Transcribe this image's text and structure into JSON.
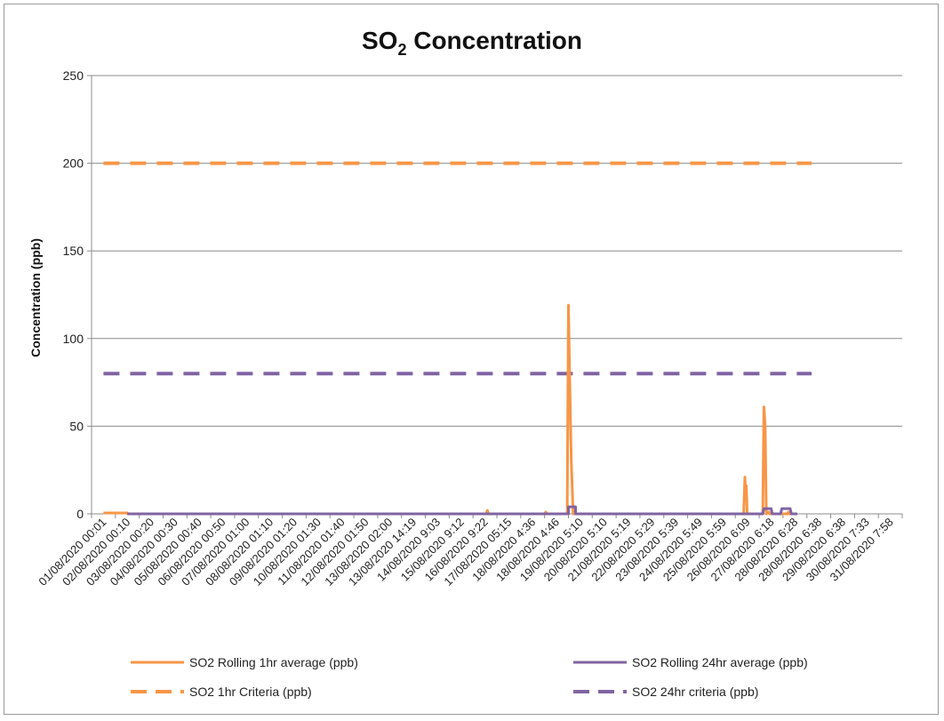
{
  "chart_data": {
    "type": "line",
    "title_main": "SO",
    "title_sub": "2",
    "title_rest": " Concentration",
    "ylabel": "Concentration (ppb)",
    "xlabel": "",
    "ylim": [
      0,
      250
    ],
    "yticks": [
      0,
      50,
      100,
      150,
      200,
      250
    ],
    "grid": true,
    "legend_position": "bottom",
    "x_categories": [
      "01/08/2020 00:01",
      "02/08/2020 00:10",
      "03/08/2020 00:20",
      "04/08/2020 00:30",
      "05/08/2020 00:40",
      "06/08/2020 00:50",
      "07/08/2020 01:00",
      "08/08/2020 01:10",
      "09/08/2020 01:20",
      "10/08/2020 01:30",
      "11/08/2020 01:40",
      "12/08/2020 01:50",
      "13/08/2020 02:00",
      "13/08/2020 14:19",
      "14/08/2020 9:03",
      "15/08/2020 9:12",
      "16/08/2020 9:22",
      "17/08/2020 05:15",
      "18/08/2020 4:36",
      "18/08/2020 4:46",
      "19/08/2020 5:10",
      "20/08/2020 5:10",
      "21/08/2020 5:19",
      "22/08/2020 5:29",
      "23/08/2020 5:39",
      "24/08/2020 5:49",
      "25/08/2020 5:59",
      "26/08/2020 6:09",
      "27/08/2020 6:18",
      "28/08/2020 6:28",
      "28/08/2020 6:38",
      "29/08/2020 6:38",
      "30/08/2020 7:33",
      "31/08/2020 7:58"
    ],
    "series": [
      {
        "name": "SO2 Rolling 1hr average (ppb)",
        "color": "#f79646",
        "style": "solid",
        "points": [
          [
            0,
            0.5
          ],
          [
            1,
            0.5
          ],
          [
            1.01,
            0
          ],
          [
            16.05,
            0
          ],
          [
            16.1,
            2
          ],
          [
            16.15,
            0
          ],
          [
            18.5,
            0
          ],
          [
            18.55,
            1
          ],
          [
            18.6,
            0
          ],
          [
            19.45,
            0
          ],
          [
            19.5,
            119
          ],
          [
            19.55,
            80
          ],
          [
            19.62,
            30
          ],
          [
            19.7,
            0
          ],
          [
            26.85,
            0
          ],
          [
            26.9,
            21
          ],
          [
            26.93,
            12
          ],
          [
            26.96,
            16
          ],
          [
            27.0,
            0
          ],
          [
            27.65,
            0
          ],
          [
            27.7,
            61
          ],
          [
            27.75,
            50
          ],
          [
            27.8,
            0
          ],
          [
            27.9,
            1
          ],
          [
            27.95,
            0
          ],
          [
            28.7,
            0
          ],
          [
            28.72,
            1
          ],
          [
            28.75,
            0
          ],
          [
            29.1,
            0
          ]
        ]
      },
      {
        "name": "SO2 Rolling 24hr average (ppb)",
        "color": "#8064a2",
        "style": "solid",
        "points": [
          [
            1,
            0
          ],
          [
            19.5,
            0
          ],
          [
            19.5,
            4
          ],
          [
            19.8,
            4
          ],
          [
            19.8,
            0
          ],
          [
            27.65,
            0
          ],
          [
            27.7,
            3
          ],
          [
            28.0,
            3
          ],
          [
            28.05,
            0
          ],
          [
            28.4,
            0
          ],
          [
            28.45,
            3
          ],
          [
            28.8,
            3
          ],
          [
            28.85,
            0
          ],
          [
            29.1,
            0
          ]
        ]
      },
      {
        "name": "SO2 1hr Criteria (ppb)",
        "color": "#f79646",
        "style": "dashed",
        "points": [
          [
            0,
            200
          ],
          [
            29.7,
            200
          ]
        ]
      },
      {
        "name": "SO2 24hr criteria (ppb)",
        "color": "#8064a2",
        "style": "dashed",
        "points": [
          [
            0,
            80
          ],
          [
            29.7,
            80
          ]
        ]
      }
    ]
  }
}
